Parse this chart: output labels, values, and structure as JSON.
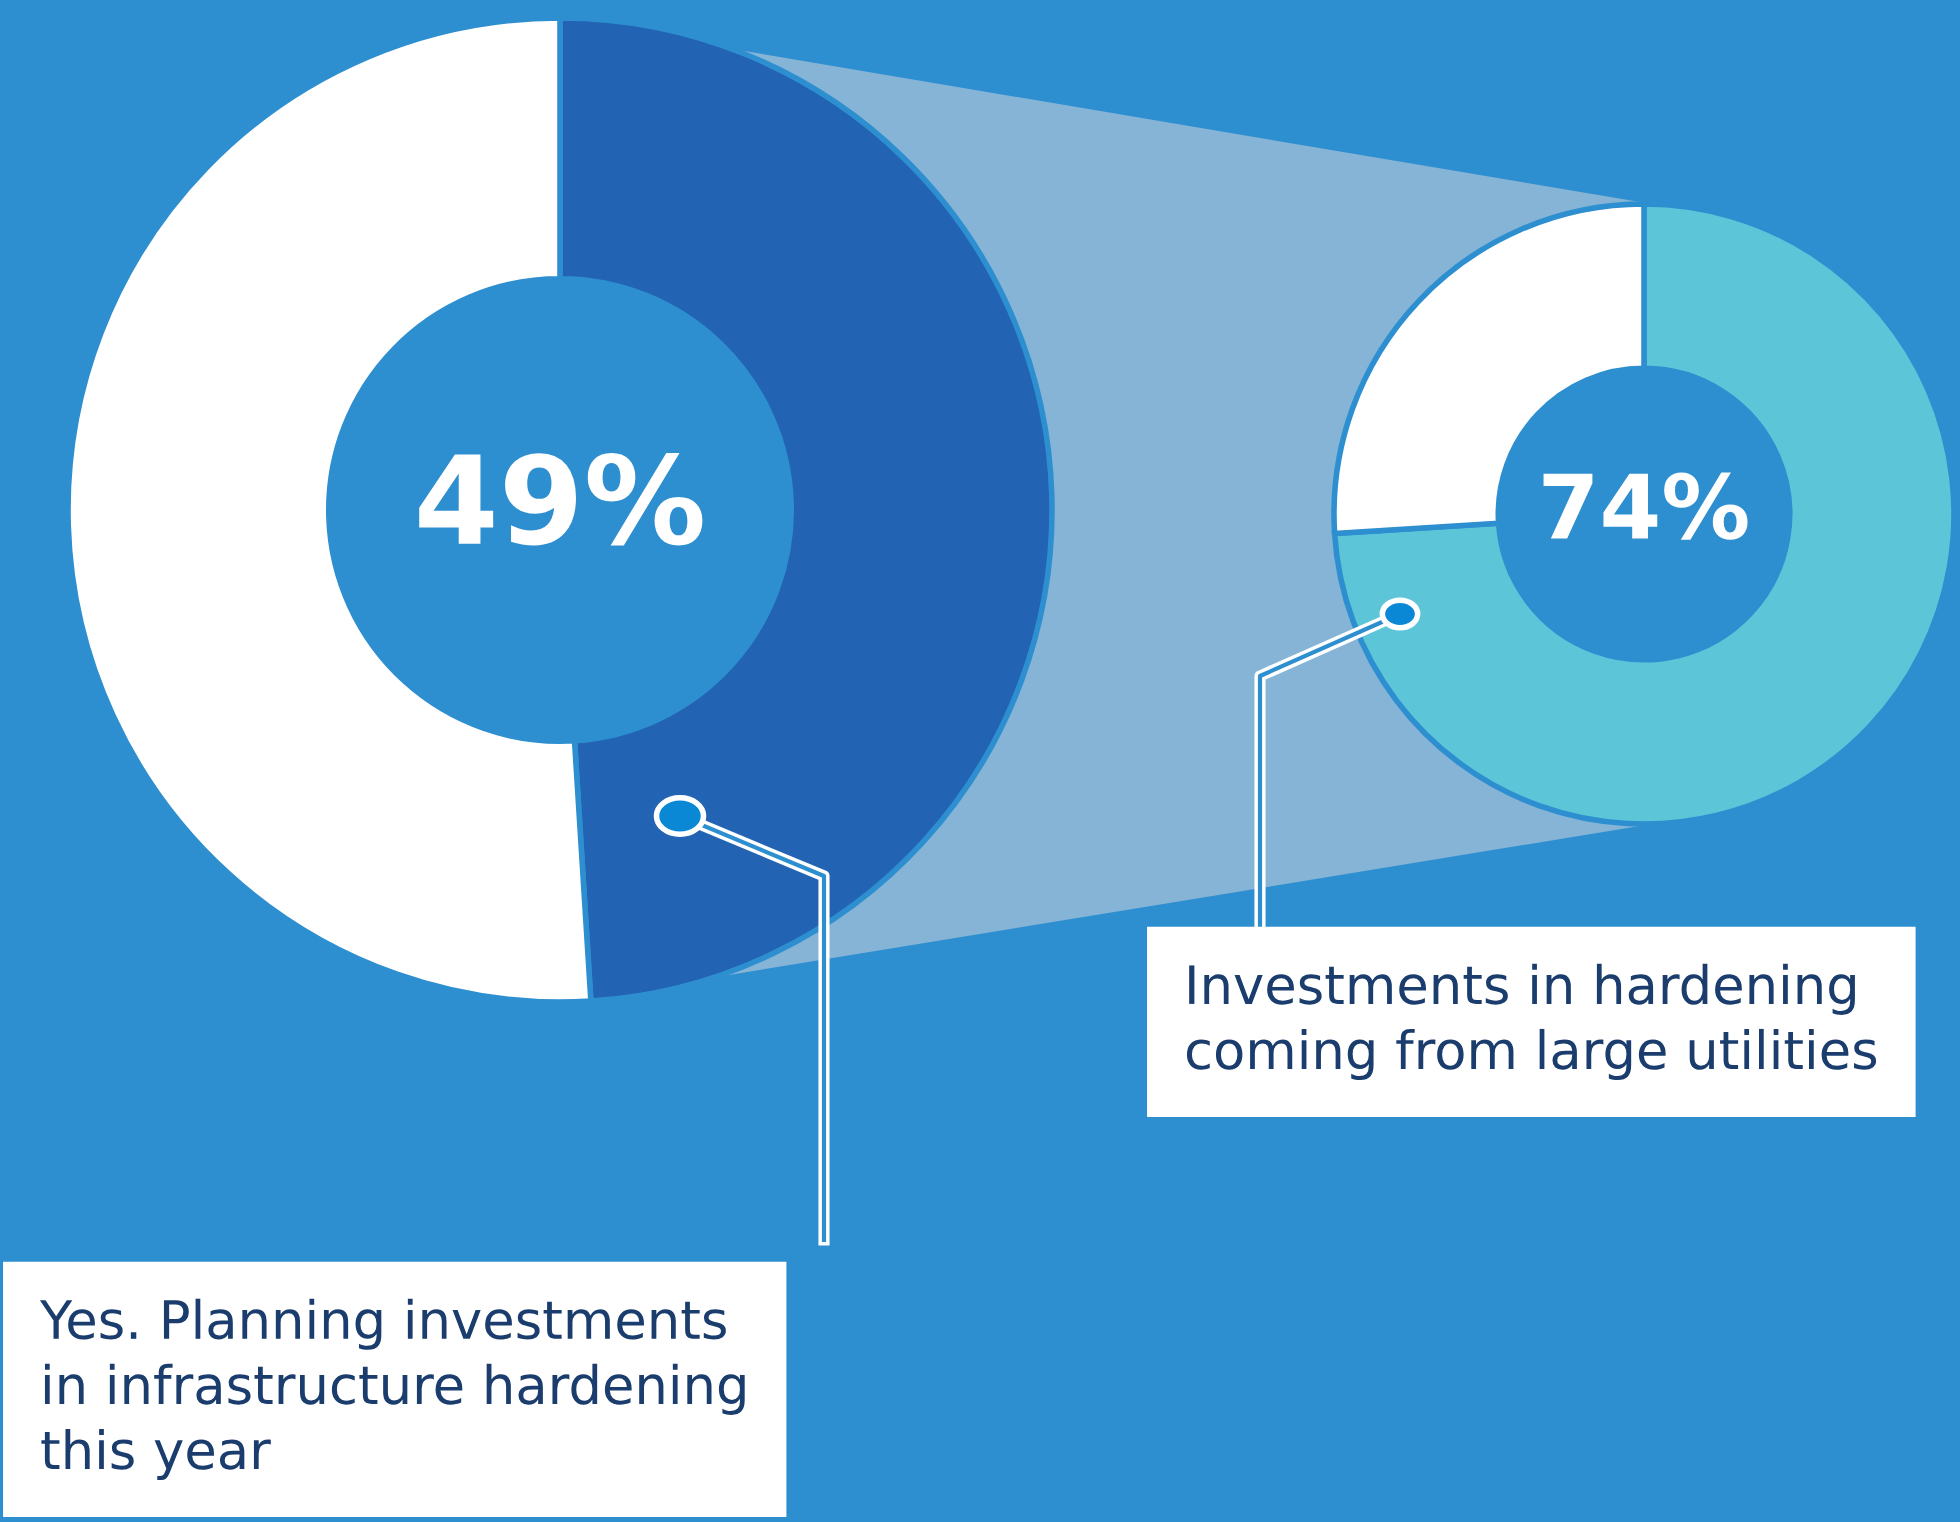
{
  "chart_data": [
    {
      "type": "donut",
      "categories": [
        null,
        null
      ],
      "values": [
        49,
        51
      ],
      "colors": [
        "#2263b3",
        "#ffffff"
      ],
      "value_labels": [
        "49%",
        null
      ],
      "annotations": [
        "Yes. Planning investments\nin infrastructure hardening\nthis year"
      ]
    },
    {
      "type": "donut",
      "categories": [
        null,
        null
      ],
      "values": [
        74,
        26
      ],
      "colors": [
        "#5cc6d8",
        "#ffffff"
      ],
      "value_labels": [
        "74%",
        null
      ],
      "annotations": [
        "Investments in hardening\ncoming from large utilities"
      ]
    }
  ]
}
